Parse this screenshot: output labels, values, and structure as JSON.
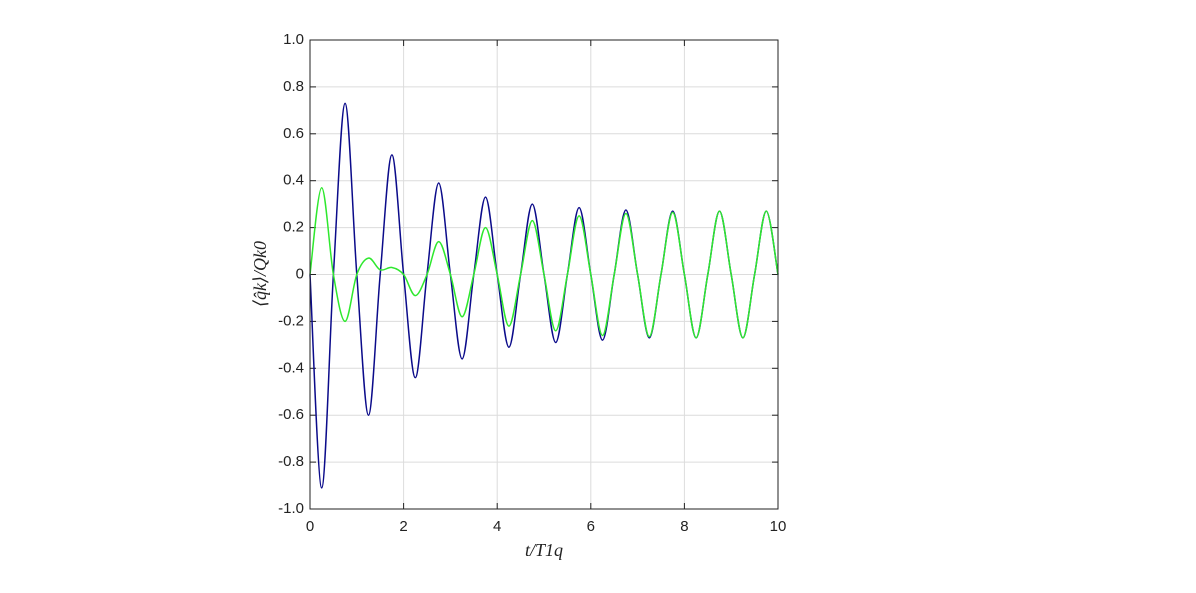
{
  "chart_data": {
    "type": "line",
    "x_label": "t/T1q",
    "y_label": "⟨q̂k⟩/Qk0",
    "x": [
      0,
      0.25,
      0.5,
      0.75,
      1,
      1.25,
      1.5,
      1.75,
      2,
      2.25,
      2.5,
      2.75,
      3,
      3.25,
      3.5,
      3.75,
      4,
      4.25,
      4.5,
      4.75,
      5,
      5.25,
      5.5,
      5.75,
      6,
      6.25,
      6.5,
      6.75,
      7,
      7.25,
      7.5,
      7.75,
      8,
      8.25,
      8.5,
      8.75,
      9,
      9.25,
      9.5,
      9.75,
      10
    ],
    "series": [
      {
        "color": "#0b0b8a",
        "values": [
          0,
          -0.91,
          0,
          0.73,
          0,
          -0.6,
          0,
          0.51,
          0,
          -0.44,
          0,
          0.39,
          0,
          -0.36,
          0,
          0.33,
          0,
          -0.31,
          0,
          0.3,
          0,
          -0.29,
          0,
          0.285,
          0,
          -0.28,
          0,
          0.275,
          0,
          -0.27,
          0,
          0.27,
          0,
          -0.27,
          0,
          0.27,
          0,
          -0.27,
          0,
          0.27,
          0
        ]
      },
      {
        "color": "#2ee82e",
        "values": [
          0,
          0.37,
          0,
          -0.2,
          0,
          0.07,
          0.02,
          0.03,
          0,
          -0.09,
          0,
          0.14,
          0,
          -0.18,
          0,
          0.2,
          0,
          -0.22,
          0,
          0.23,
          0,
          -0.24,
          0,
          0.25,
          0,
          -0.26,
          0,
          0.26,
          0,
          -0.265,
          0,
          0.265,
          0,
          -0.27,
          0,
          0.27,
          0,
          -0.27,
          0,
          0.27,
          0
        ]
      }
    ],
    "xlim": [
      0,
      10
    ],
    "xticks": [
      0,
      2,
      4,
      6,
      8,
      10
    ],
    "ylim": [
      -1,
      1
    ],
    "yticks": [
      {
        "value": -1,
        "label": "-1.0"
      },
      -0.8,
      -0.6,
      -0.4,
      -0.2,
      0,
      0.2,
      0.4,
      0.6,
      0.8,
      {
        "value": 1,
        "label": "1.0"
      }
    ],
    "grid": true
  }
}
